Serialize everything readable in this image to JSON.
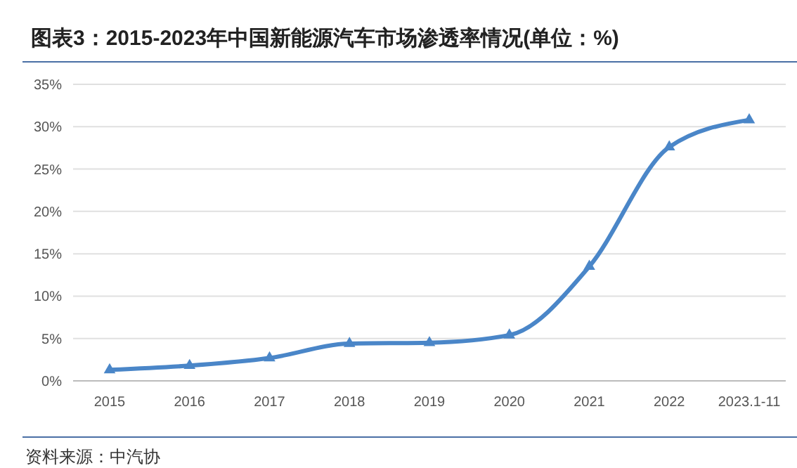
{
  "chart_data": {
    "type": "line",
    "title": "图表3：2015-2023年中国新能源汽车市场渗透率情况(单位：%)",
    "categories": [
      "2015",
      "2016",
      "2017",
      "2018",
      "2019",
      "2020",
      "2021",
      "2022",
      "2023.1-11"
    ],
    "series": [
      {
        "color": "#4a86c8",
        "values": [
          1.3,
          1.8,
          2.7,
          4.4,
          4.5,
          5.4,
          13.5,
          27.6,
          30.8
        ]
      }
    ],
    "ylim": [
      0,
      35
    ],
    "yticks": [
      {
        "value": 0,
        "label": "0%"
      },
      {
        "value": 5,
        "label": "5%"
      },
      {
        "value": 10,
        "label": "10%"
      },
      {
        "value": 15,
        "label": "15%"
      },
      {
        "value": 20,
        "label": "20%"
      },
      {
        "value": 25,
        "label": "25%"
      },
      {
        "value": 30,
        "label": "30%"
      },
      {
        "value": 35,
        "label": "35%"
      }
    ],
    "grid": "y",
    "marker": "triangle",
    "line_style": "solid",
    "annotations": [
      "资料来源：中汽协"
    ]
  }
}
